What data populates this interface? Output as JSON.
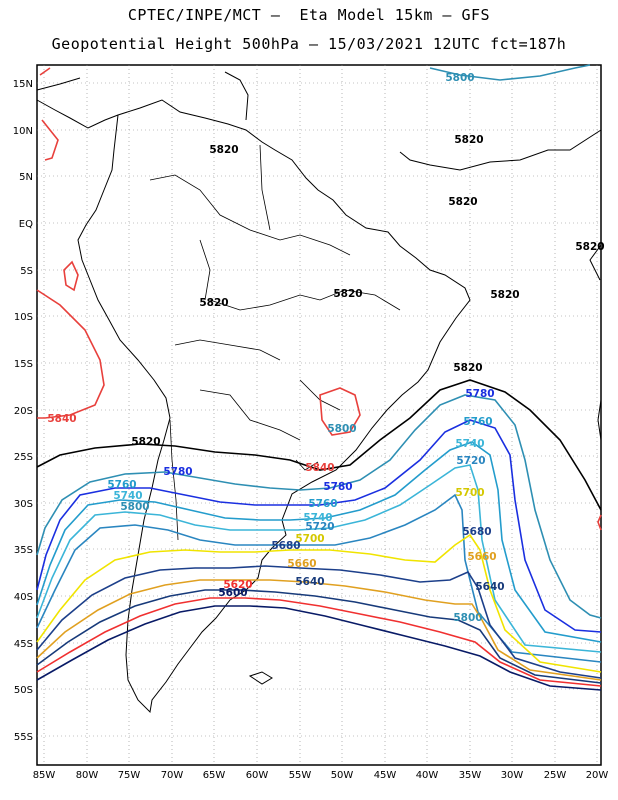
{
  "title_line1": "CPTEC/INPE/MCT –  Eta Model 15km – GFS",
  "title_line2": "Geopotential Height 500hPa – 15/03/2021 12UTC fct=187h",
  "lat_labels": [
    "15N",
    "10N",
    "5N",
    "EQ",
    "5S",
    "10S",
    "15S",
    "20S",
    "25S",
    "30S",
    "35S",
    "40S",
    "45S",
    "50S",
    "55S"
  ],
  "lon_labels": [
    "85W",
    "80W",
    "75W",
    "70W",
    "65W",
    "60W",
    "55W",
    "50W",
    "45W",
    "40W",
    "35W",
    "30W",
    "25W",
    "20W"
  ],
  "contour_colors": {
    "5840": "#e8403c",
    "5820": "#000000",
    "5800": "#2e8fb3",
    "5780": "#1a2fe0",
    "5760": "#239ccc",
    "5740": "#3bb5d8",
    "5720": "#2a86c0",
    "5700": "#f0e400",
    "5680": "#1c3f8a",
    "5660": "#e0a020",
    "5640": "#173a7a",
    "5620": "#f03030",
    "5600": "#081a66"
  },
  "contour_labels": [
    {
      "text": "5800",
      "color": "#2e8fb3"
    },
    {
      "text": "5820",
      "color": "#000000"
    },
    {
      "text": "5820",
      "color": "#000000"
    },
    {
      "text": "5820",
      "color": "#000000"
    },
    {
      "text": "5820",
      "color": "#000000"
    },
    {
      "text": "5820",
      "color": "#000000"
    },
    {
      "text": "5820",
      "color": "#000000"
    },
    {
      "text": "5820",
      "color": "#000000"
    },
    {
      "text": "5820",
      "color": "#000000"
    },
    {
      "text": "5820",
      "color": "#000000"
    },
    {
      "text": "5840",
      "color": "#e8403c"
    },
    {
      "text": "5840",
      "color": "#e8403c"
    },
    {
      "text": "5800",
      "color": "#2e8fb3"
    },
    {
      "text": "5780",
      "color": "#1a2fe0"
    },
    {
      "text": "5760",
      "color": "#239ccc"
    },
    {
      "text": "5740",
      "color": "#3bb5d8"
    },
    {
      "text": "5720",
      "color": "#2a86c0"
    },
    {
      "text": "5700",
      "color": "#d4c800"
    },
    {
      "text": "5680",
      "color": "#1c3f8a"
    },
    {
      "text": "5660",
      "color": "#e0a020"
    },
    {
      "text": "5640",
      "color": "#173a7a"
    },
    {
      "text": "5800",
      "color": "#2e8fb3"
    },
    {
      "text": "5780",
      "color": "#1a2fe0"
    },
    {
      "text": "5760",
      "color": "#239ccc"
    },
    {
      "text": "5740",
      "color": "#3bb5d8"
    },
    {
      "text": "5800",
      "color": "#2e8fb3"
    },
    {
      "text": "5780",
      "color": "#1a2fe0"
    },
    {
      "text": "5760",
      "color": "#239ccc"
    },
    {
      "text": "5740",
      "color": "#3bb5d8"
    },
    {
      "text": "5720",
      "color": "#2a86c0"
    },
    {
      "text": "5700",
      "color": "#d4c800"
    },
    {
      "text": "5680",
      "color": "#1c3f8a"
    },
    {
      "text": "5660",
      "color": "#e0a020"
    },
    {
      "text": "5640",
      "color": "#173a7a"
    },
    {
      "text": "5620",
      "color": "#f03030"
    },
    {
      "text": "5600",
      "color": "#081a66"
    }
  ]
}
